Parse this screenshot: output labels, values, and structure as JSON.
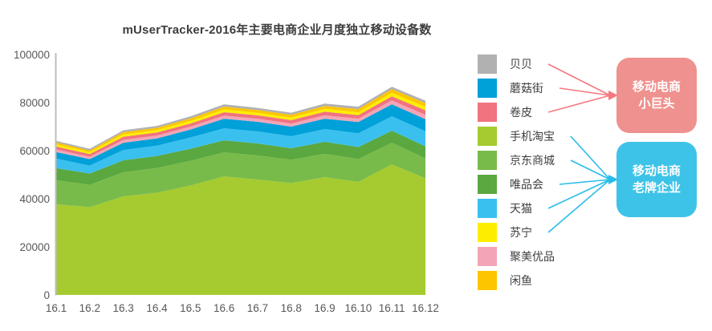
{
  "title": "mUserTracker-2016年主要电商企业月度独立移动设备数",
  "chart_data": {
    "type": "area",
    "stacked": true,
    "x_labels": [
      "16.1",
      "16.2",
      "16.3",
      "16.4",
      "16.5",
      "16.6",
      "16.7",
      "16.8",
      "16.9",
      "16.10",
      "16.11",
      "16.12"
    ],
    "y_ticks": [
      0,
      20000,
      40000,
      60000,
      80000,
      100000
    ],
    "ylim": [
      0,
      100000
    ],
    "grid": false,
    "legend_position": "right",
    "series": [
      {
        "name": "手机淘宝",
        "color": "#a5cb31",
        "values": [
          37700,
          36500,
          41000,
          42500,
          45500,
          49300,
          48000,
          46500,
          49000,
          47000,
          54300,
          48500
        ]
      },
      {
        "name": "京东商城",
        "color": "#79bb4a",
        "values": [
          10000,
          9300,
          10000,
          10300,
          10300,
          10000,
          10000,
          9700,
          9700,
          9500,
          9000,
          8300
        ]
      },
      {
        "name": "唯品会",
        "color": "#5aa83f",
        "values": [
          5000,
          4700,
          5000,
          5000,
          5000,
          5000,
          5000,
          4800,
          5000,
          5000,
          5000,
          5000
        ]
      },
      {
        "name": "天猫",
        "color": "#3ac0ef",
        "values": [
          4000,
          3300,
          4300,
          4300,
          4700,
          5000,
          5000,
          5000,
          5300,
          5700,
          6000,
          6300
        ]
      },
      {
        "name": "蘑菇街",
        "color": "#00a0d9",
        "values": [
          2700,
          2700,
          3000,
          3000,
          3300,
          4000,
          4000,
          4000,
          4300,
          4700,
          5000,
          5000
        ]
      },
      {
        "name": "聚美优品",
        "color": "#f3a5b6",
        "values": [
          1100,
          1000,
          1200,
          1200,
          1200,
          1300,
          1300,
          1300,
          1400,
          1400,
          1600,
          1800
        ]
      },
      {
        "name": "卷皮",
        "color": "#f0737f",
        "values": [
          1200,
          1100,
          1300,
          1300,
          1300,
          1400,
          1400,
          1400,
          1500,
          1500,
          1700,
          1900
        ]
      },
      {
        "name": "苏宁",
        "color": "#fdee00",
        "values": [
          900,
          800,
          1000,
          1000,
          1100,
          1200,
          1100,
          1100,
          1200,
          1200,
          1500,
          1500
        ]
      },
      {
        "name": "闲鱼",
        "color": "#fdc500",
        "values": [
          800,
          700,
          900,
          900,
          1000,
          1100,
          1100,
          1100,
          1200,
          1300,
          1500,
          1500
        ]
      },
      {
        "name": "贝贝",
        "color": "#b1b1b1",
        "values": [
          700,
          700,
          800,
          800,
          900,
          1000,
          900,
          900,
          1000,
          1000,
          1000,
          1000
        ]
      }
    ],
    "legend": [
      {
        "label": "贝贝",
        "color": "#b1b1b1"
      },
      {
        "label": "蘑菇街",
        "color": "#00a0d9"
      },
      {
        "label": "卷皮",
        "color": "#f0737f"
      },
      {
        "label": "手机淘宝",
        "color": "#a5cb31"
      },
      {
        "label": "京东商城",
        "color": "#79bb4a"
      },
      {
        "label": "唯品会",
        "color": "#5aa83f"
      },
      {
        "label": "天猫",
        "color": "#3ac0ef"
      },
      {
        "label": "苏宁",
        "color": "#fdee00"
      },
      {
        "label": "聚美优品",
        "color": "#f3a5b6"
      },
      {
        "label": "闲鱼",
        "color": "#fdc500"
      }
    ]
  },
  "callouts": {
    "small_giants": {
      "line1": "移动电商",
      "line2": "小巨头",
      "box_color": "#ef918e",
      "arrow_color": "#f4797f",
      "source_labels": [
        "贝贝",
        "蘑菇街",
        "卷皮"
      ]
    },
    "established": {
      "line1": "移动电商",
      "line2": "老牌企业",
      "box_color": "#3ec3e8",
      "arrow_color": "#29bce9",
      "source_labels": [
        "手机淘宝",
        "京东商城",
        "唯品会",
        "天猫",
        "苏宁"
      ]
    }
  }
}
